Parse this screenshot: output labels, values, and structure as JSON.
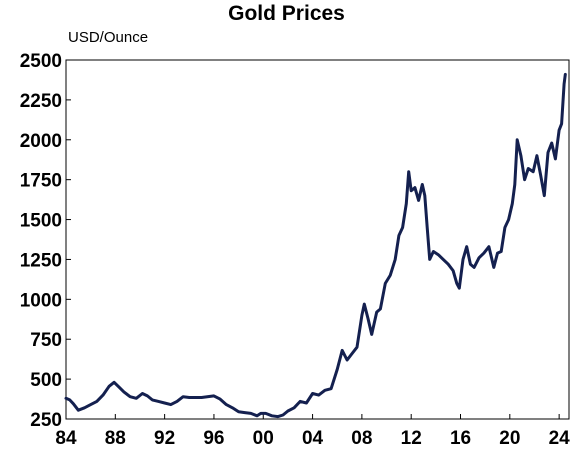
{
  "chart_data": {
    "type": "line",
    "title": "Gold Prices",
    "ylabel": "USD/Ounce",
    "xlabel": "",
    "ylim": [
      250,
      2500
    ],
    "xlim": [
      1984,
      2024.8
    ],
    "yticks": [
      250,
      500,
      750,
      1000,
      1250,
      1500,
      1750,
      2000,
      2250,
      2500
    ],
    "xticks": [
      {
        "value": 1984,
        "label": "84"
      },
      {
        "value": 1988,
        "label": "88"
      },
      {
        "value": 1992,
        "label": "92"
      },
      {
        "value": 1996,
        "label": "96"
      },
      {
        "value": 2000,
        "label": "00"
      },
      {
        "value": 2004,
        "label": "04"
      },
      {
        "value": 2008,
        "label": "08"
      },
      {
        "value": 2012,
        "label": "12"
      },
      {
        "value": 2016,
        "label": "16"
      },
      {
        "value": 2020,
        "label": "20"
      },
      {
        "value": 2024,
        "label": "24"
      }
    ],
    "grid": false,
    "series_color": "#14204f",
    "x": [
      1984.0,
      1984.3,
      1984.6,
      1985.0,
      1985.5,
      1986.0,
      1986.5,
      1987.0,
      1987.5,
      1987.9,
      1988.3,
      1988.7,
      1989.2,
      1989.7,
      1990.2,
      1990.6,
      1991.0,
      1991.5,
      1992.0,
      1992.5,
      1993.0,
      1993.5,
      1994.0,
      1995.0,
      1996.0,
      1996.5,
      1997.0,
      1997.5,
      1998.0,
      1998.5,
      1999.0,
      1999.5,
      1999.8,
      2000.2,
      2000.7,
      2001.2,
      2001.6,
      2002.0,
      2002.5,
      2003.0,
      2003.5,
      2004.0,
      2004.5,
      2005.0,
      2005.5,
      2006.0,
      2006.4,
      2006.8,
      2007.2,
      2007.6,
      2008.0,
      2008.2,
      2008.5,
      2008.8,
      2009.2,
      2009.5,
      2009.9,
      2010.3,
      2010.7,
      2011.0,
      2011.3,
      2011.6,
      2011.8,
      2012.0,
      2012.3,
      2012.6,
      2012.9,
      2013.1,
      2013.3,
      2013.5,
      2013.8,
      2014.2,
      2014.6,
      2015.0,
      2015.4,
      2015.7,
      2015.9,
      2016.2,
      2016.5,
      2016.8,
      2017.1,
      2017.5,
      2017.9,
      2018.3,
      2018.7,
      2019.0,
      2019.3,
      2019.6,
      2019.9,
      2020.2,
      2020.4,
      2020.6,
      2020.9,
      2021.2,
      2021.5,
      2021.9,
      2022.2,
      2022.5,
      2022.8,
      2023.1,
      2023.4,
      2023.7,
      2024.0,
      2024.2,
      2024.4,
      2024.5
    ],
    "values": [
      380,
      370,
      345,
      305,
      320,
      340,
      360,
      400,
      455,
      480,
      450,
      420,
      390,
      380,
      410,
      395,
      370,
      360,
      350,
      340,
      360,
      390,
      385,
      385,
      395,
      375,
      340,
      320,
      295,
      290,
      285,
      270,
      285,
      285,
      270,
      265,
      275,
      300,
      320,
      360,
      350,
      410,
      400,
      430,
      440,
      560,
      680,
      620,
      660,
      700,
      900,
      970,
      880,
      780,
      920,
      940,
      1100,
      1150,
      1250,
      1400,
      1450,
      1600,
      1800,
      1680,
      1700,
      1620,
      1720,
      1650,
      1450,
      1250,
      1300,
      1280,
      1250,
      1220,
      1180,
      1100,
      1070,
      1250,
      1330,
      1220,
      1200,
      1260,
      1290,
      1330,
      1200,
      1290,
      1300,
      1450,
      1500,
      1600,
      1720,
      2000,
      1900,
      1750,
      1820,
      1800,
      1900,
      1780,
      1650,
      1920,
      1980,
      1880,
      2060,
      2100,
      2350,
      2410
    ]
  }
}
